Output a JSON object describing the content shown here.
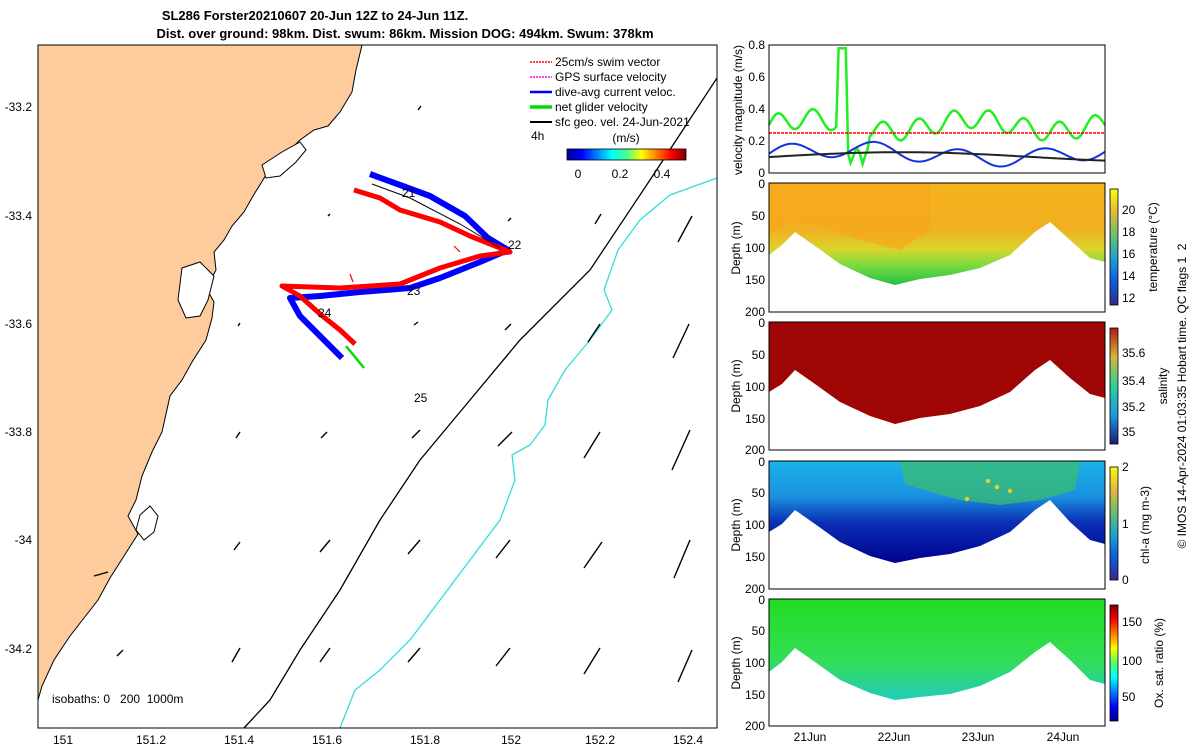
{
  "header": {
    "title_line1": "SL286 Forster20210607 20-Jun 12Z to 24-Jun 11Z.",
    "title_line2": "Dist. over ground: 98km. Dist. swum: 86km. Mission DOG: 494km. Swum: 378km"
  },
  "map": {
    "x_ticks": [
      "151",
      "151.2",
      "151.4",
      "151.6",
      "151.8",
      "152",
      "152.2",
      "152.4"
    ],
    "y_ticks": [
      "-33.2",
      "-33.4",
      "-33.6",
      "-33.8",
      "-34",
      "-34.2"
    ],
    "legend": [
      {
        "label": "25cm/s swim vector",
        "color": "#ff0000"
      },
      {
        "label": "GPS surface velocity",
        "color": "#ff00ff"
      },
      {
        "label": "dive-avg current veloc.",
        "color": "#0000ff"
      },
      {
        "label": "net glider velocity",
        "color": "#00dd00"
      },
      {
        "label": "sfc geo. vel. 24-Jun-2021",
        "color": "#000000"
      }
    ],
    "time_marker": "4h",
    "colorbar_title": "(m/s)",
    "colorbar_ticks": [
      "0",
      "0.2",
      "0.4"
    ],
    "day_labels": [
      "21",
      "22",
      "23",
      "24",
      "25"
    ],
    "isobaths_label": "isobaths: 0   200  1000m",
    "colors": {
      "land": "#fdcb9c",
      "isobath_200": "#000000",
      "isobath_1000": "#33dddd"
    }
  },
  "chart_data": [
    {
      "type": "line",
      "title": "",
      "ylabel": "velocity magnitude (m/s)",
      "ylim": [
        0,
        0.8
      ],
      "y_ticks": [
        "0",
        "0.2",
        "0.4",
        "0.6",
        "0.8"
      ],
      "x_range_days": [
        20.5,
        24.46
      ],
      "series": [
        {
          "name": "net glider velocity",
          "color": "#22ee22",
          "typical": 0.3
        },
        {
          "name": "25cm/s swim vector",
          "color": "#ff0000",
          "typical": 0.25
        },
        {
          "name": "dive-avg current veloc.",
          "color": "#1133dd",
          "typical": 0.12
        },
        {
          "name": "sfc geo. vel.",
          "color": "#222222",
          "typical": 0.1
        }
      ]
    },
    {
      "type": "heatmap",
      "ylabel": "Depth (m)",
      "y_ticks": [
        "0",
        "50",
        "100",
        "150",
        "200"
      ],
      "colorbar_label": "temperature (°C)",
      "colorbar_ticks": [
        "12",
        "14",
        "16",
        "18",
        "20"
      ],
      "clim": [
        11,
        21.5
      ]
    },
    {
      "type": "heatmap",
      "ylabel": "Depth (m)",
      "y_ticks": [
        "0",
        "50",
        "100",
        "150",
        "200"
      ],
      "colorbar_label": "salinity",
      "colorbar_ticks": [
        "35",
        "35.2",
        "35.4",
        "35.6"
      ],
      "clim": [
        34.9,
        35.7
      ]
    },
    {
      "type": "heatmap",
      "ylabel": "Depth (m)",
      "y_ticks": [
        "0",
        "50",
        "100",
        "150",
        "200"
      ],
      "colorbar_label": "chl-a (mg m-3)",
      "colorbar_ticks": [
        "0",
        "1",
        "2"
      ],
      "clim": [
        0,
        2
      ]
    },
    {
      "type": "heatmap",
      "ylabel": "Depth (m)",
      "y_ticks": [
        "0",
        "50",
        "100",
        "150",
        "200"
      ],
      "x_ticks": [
        "21Jun",
        "22Jun",
        "23Jun",
        "24Jun"
      ],
      "colorbar_label": "Ox. sat. ratio (%)",
      "colorbar_ticks": [
        "50",
        "100",
        "150"
      ],
      "clim": [
        25,
        175
      ]
    }
  ],
  "footer": {
    "credit": "© IMOS 14-Apr-2024 01:03:35 Hobart time. QC flags 1  2"
  }
}
